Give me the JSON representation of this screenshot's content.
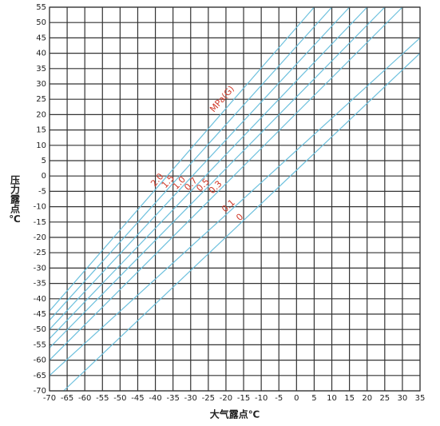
{
  "chart_data": {
    "type": "line",
    "xlabel": "大气露点℃",
    "ylabel": "压力露点℃",
    "annotation": "MPa(G)",
    "xlim": [
      -70,
      35
    ],
    "ylim": [
      -70,
      55
    ],
    "xticks": [
      -70,
      -65,
      -60,
      -55,
      -50,
      -45,
      -40,
      -35,
      -30,
      -25,
      -20,
      -15,
      -10,
      -5,
      0,
      5,
      10,
      15,
      20,
      25,
      30,
      35
    ],
    "yticks": [
      -70,
      -65,
      -60,
      -55,
      -50,
      -45,
      -40,
      -35,
      -30,
      -25,
      -20,
      -15,
      -10,
      -5,
      0,
      5,
      10,
      15,
      20,
      25,
      30,
      35,
      40,
      45,
      50,
      55
    ],
    "grid": true,
    "label_color": "#d03a2a",
    "series": [
      {
        "name": "2.0",
        "color": "#6cc0dd",
        "x": [
          -70,
          5
        ],
        "values": [
          -44,
          55
        ]
      },
      {
        "name": "1.5",
        "color": "#6cc0dd",
        "x": [
          -70,
          10
        ],
        "values": [
          -47,
          55
        ]
      },
      {
        "name": "1.0",
        "color": "#6cc0dd",
        "x": [
          -70,
          15
        ],
        "values": [
          -50,
          55
        ]
      },
      {
        "name": "0.7",
        "color": "#6cc0dd",
        "x": [
          -70,
          20
        ],
        "values": [
          -53,
          55
        ]
      },
      {
        "name": "0.5",
        "color": "#6cc0dd",
        "x": [
          -70,
          25
        ],
        "values": [
          -56,
          55
        ]
      },
      {
        "name": "0.3",
        "color": "#6cc0dd",
        "x": [
          -70,
          30
        ],
        "values": [
          -60,
          55
        ]
      },
      {
        "name": "0.1",
        "color": "#6cc0dd",
        "x": [
          -70,
          35
        ],
        "values": [
          -65,
          45
        ]
      },
      {
        "name": "0",
        "color": "#6cc0dd",
        "x": [
          -66,
          35
        ],
        "values": [
          -70,
          40
        ]
      }
    ]
  }
}
